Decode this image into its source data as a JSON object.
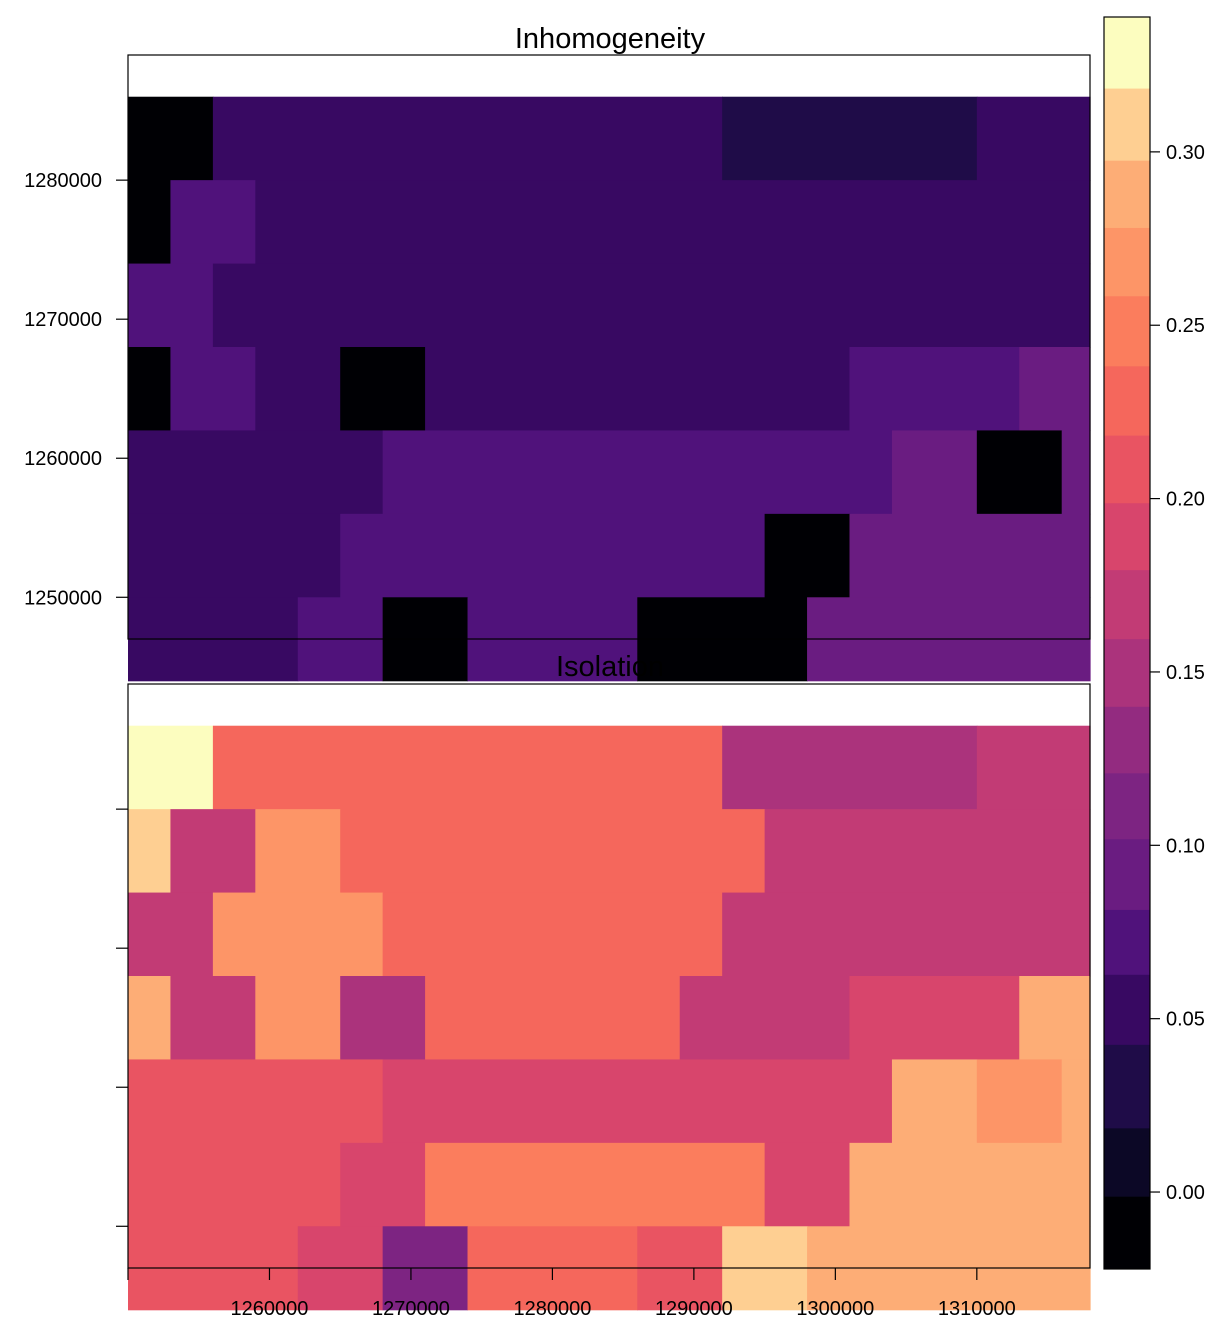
{
  "chart_data": [
    {
      "type": "heatmap",
      "title": "Inhomogeneity",
      "x_range": [
        1250000,
        1318000
      ],
      "y_range": [
        1247000,
        1289000
      ],
      "cell_size": [
        3000,
        6000
      ],
      "xlabel": "",
      "ylabel": "",
      "xticks": [
        1260000,
        1270000,
        1280000,
        1290000,
        1300000,
        1310000
      ],
      "xtick_labels": [
        "1260000",
        "1270000",
        "1280000",
        "1290000",
        "1300000",
        "1310000"
      ],
      "yticks": [
        1250000,
        1260000,
        1270000,
        1280000
      ],
      "ytick_labels": [
        "1250000",
        "1260000",
        "1270000",
        "1280000"
      ],
      "rows": [
        {
          "y": 1283000,
          "segments": [
            [
              1250000,
              1256000,
              -0.01
            ],
            [
              1256000,
              1292000,
              0.05
            ],
            [
              1292000,
              1310000,
              0.03
            ],
            [
              1310000,
              1318000,
              0.05
            ]
          ]
        },
        {
          "y": 1277000,
          "segments": [
            [
              1250000,
              1253000,
              -0.01
            ],
            [
              1253000,
              1259000,
              0.07
            ],
            [
              1259000,
              1318000,
              0.05
            ]
          ]
        },
        {
          "y": 1271000,
          "segments": [
            [
              1250000,
              1256000,
              0.07
            ],
            [
              1256000,
              1318000,
              0.05
            ]
          ]
        },
        {
          "y": 1265000,
          "segments": [
            [
              1250000,
              1253000,
              -0.01
            ],
            [
              1253000,
              1259000,
              0.07
            ],
            [
              1259000,
              1265000,
              0.05
            ],
            [
              1265000,
              1271000,
              -0.01
            ],
            [
              1271000,
              1301000,
              0.05
            ],
            [
              1301000,
              1313000,
              0.07
            ],
            [
              1313000,
              1318000,
              0.09
            ]
          ]
        },
        {
          "y": 1259000,
          "segments": [
            [
              1250000,
              1268000,
              0.05
            ],
            [
              1268000,
              1304000,
              0.07
            ],
            [
              1304000,
              1310000,
              0.09
            ],
            [
              1310000,
              1316000,
              -0.01
            ],
            [
              1316000,
              1318000,
              0.09
            ]
          ]
        },
        {
          "y": 1253000,
          "segments": [
            [
              1250000,
              1265000,
              0.05
            ],
            [
              1265000,
              1295000,
              0.07
            ],
            [
              1295000,
              1301000,
              -0.01
            ],
            [
              1301000,
              1318000,
              0.09
            ]
          ]
        },
        {
          "y": 1247000,
          "segments": [
            [
              1250000,
              1262000,
              0.05
            ],
            [
              1262000,
              1268000,
              0.07
            ],
            [
              1268000,
              1274000,
              -0.01
            ],
            [
              1274000,
              1286000,
              0.07
            ],
            [
              1286000,
              1298000,
              -0.01
            ],
            [
              1298000,
              1318000,
              0.09
            ]
          ]
        }
      ]
    },
    {
      "type": "heatmap",
      "title": "Isolation",
      "x_range": [
        1250000,
        1318000
      ],
      "y_range": [
        1247000,
        1289000
      ],
      "cell_size": [
        3000,
        6000
      ],
      "xlabel": "",
      "ylabel": "",
      "xticks": [
        1260000,
        1270000,
        1280000,
        1290000,
        1300000,
        1310000
      ],
      "xtick_labels": [
        "1260000",
        "1270000",
        "1280000",
        "1290000",
        "1300000",
        "1310000"
      ],
      "yticks": [
        1250000,
        1260000,
        1270000,
        1280000
      ],
      "ytick_labels": [
        "",
        "",
        "",
        ""
      ],
      "rows": [
        {
          "y": 1283000,
          "segments": [
            [
              1250000,
              1256000,
              0.33
            ],
            [
              1256000,
              1292000,
              0.23
            ],
            [
              1292000,
              1310000,
              0.15
            ],
            [
              1310000,
              1318000,
              0.17
            ]
          ]
        },
        {
          "y": 1277000,
          "segments": [
            [
              1250000,
              1253000,
              0.3
            ],
            [
              1253000,
              1259000,
              0.17
            ],
            [
              1259000,
              1265000,
              0.26
            ],
            [
              1265000,
              1295000,
              0.23
            ],
            [
              1295000,
              1318000,
              0.17
            ]
          ]
        },
        {
          "y": 1271000,
          "segments": [
            [
              1250000,
              1256000,
              0.17
            ],
            [
              1256000,
              1268000,
              0.26
            ],
            [
              1268000,
              1292000,
              0.23
            ],
            [
              1292000,
              1318000,
              0.17
            ]
          ]
        },
        {
          "y": 1265000,
          "segments": [
            [
              1250000,
              1253000,
              0.28
            ],
            [
              1253000,
              1259000,
              0.17
            ],
            [
              1259000,
              1265000,
              0.26
            ],
            [
              1265000,
              1271000,
              0.15
            ],
            [
              1271000,
              1289000,
              0.23
            ],
            [
              1289000,
              1301000,
              0.17
            ],
            [
              1301000,
              1313000,
              0.19
            ],
            [
              1313000,
              1318000,
              0.28
            ]
          ]
        },
        {
          "y": 1259000,
          "segments": [
            [
              1250000,
              1268000,
              0.21
            ],
            [
              1268000,
              1304000,
              0.19
            ],
            [
              1304000,
              1310000,
              0.28
            ],
            [
              1310000,
              1316000,
              0.26
            ],
            [
              1316000,
              1318000,
              0.28
            ]
          ]
        },
        {
          "y": 1253000,
          "segments": [
            [
              1250000,
              1265000,
              0.21
            ],
            [
              1265000,
              1271000,
              0.19
            ],
            [
              1271000,
              1295000,
              0.24
            ],
            [
              1295000,
              1301000,
              0.19
            ],
            [
              1301000,
              1318000,
              0.28
            ]
          ]
        },
        {
          "y": 1247000,
          "segments": [
            [
              1250000,
              1262000,
              0.21
            ],
            [
              1262000,
              1268000,
              0.19
            ],
            [
              1268000,
              1274000,
              0.11
            ],
            [
              1274000,
              1286000,
              0.23
            ],
            [
              1286000,
              1292000,
              0.21
            ],
            [
              1292000,
              1298000,
              0.31
            ],
            [
              1298000,
              1318000,
              0.28
            ]
          ]
        }
      ]
    }
  ],
  "colorbar": {
    "range": [
      -0.0222,
      0.3389
    ],
    "breaks": [
      -0.0222,
      -0.0012,
      0.0185,
      0.0426,
      0.0628,
      0.0815,
      0.1019,
      0.1209,
      0.1401,
      0.1596,
      0.1795,
      0.1988,
      0.2183,
      0.2383,
      0.2585,
      0.2782,
      0.2976,
      0.3184,
      0.3389
    ],
    "colors": [
      "#000004",
      "#0c0826",
      "#1f0c48",
      "#380962",
      "#50127b",
      "#6a1c81",
      "#7d2482",
      "#932b80",
      "#ab337c",
      "#c23b75",
      "#d8456c",
      "#e95462",
      "#f5675c",
      "#fb7d5d",
      "#fd9567",
      "#fdad76",
      "#fecf92",
      "#fcfdbf"
    ],
    "ticks": [
      0.0,
      0.05,
      0.1,
      0.15,
      0.2,
      0.25,
      0.3
    ],
    "tick_labels": [
      "0.00",
      "0.05",
      "0.10",
      "0.15",
      "0.20",
      "0.25",
      "0.30"
    ]
  }
}
